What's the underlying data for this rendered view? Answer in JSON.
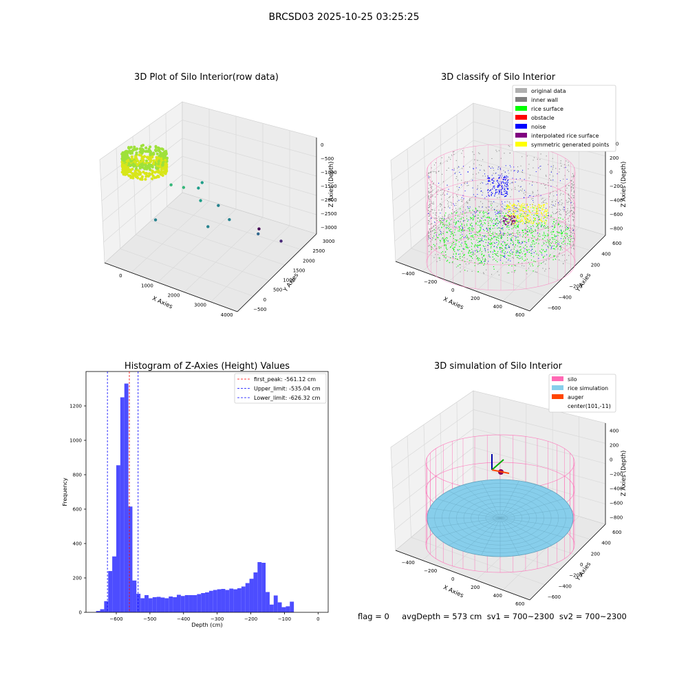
{
  "figure": {
    "title": "BRCSD03 2025-10-25 03:25:25",
    "status_text": "flag = 0     avgDepth = 573 cm  sv1 = 700~2300  sv2 = 700~2300"
  },
  "colors": {
    "original": "#b0b0b0",
    "inner_wall": "#808080",
    "rice_surface": "#00ff00",
    "obstacle": "#ff0000",
    "noise": "#0000ff",
    "interpolated": "#800080",
    "symmetric": "#ffff00",
    "silo": "#ff69b4",
    "rice_sim": "#87ceeb",
    "auger": "#ff4500",
    "hist_bar": "#4d4dff",
    "pane": "#f2f2f2",
    "grid": "#d9d9d9"
  },
  "chart_data": [
    {
      "type": "scatter",
      "subtype": "3d",
      "title": "3D Plot of Silo Interior(row data)",
      "xlabel": "X Axies",
      "ylabel": "Y Axies",
      "zlabel": "Z Axies (Depth)",
      "xticks": [
        "0",
        "1000",
        "2000",
        "3000",
        "4000"
      ],
      "yticks": [
        "−500",
        "0",
        "500",
        "1000",
        "1500",
        "2000",
        "2500",
        "3000"
      ],
      "zticks": [
        "0",
        "−500",
        "−1000",
        "−1500",
        "−2000",
        "−2500",
        "−3000"
      ],
      "xlim": [
        -500,
        4000
      ],
      "ylim": [
        -500,
        3000
      ],
      "zlim": [
        -3200,
        0
      ],
      "colormap": "viridis",
      "points": [
        {
          "x": 1000,
          "y": 500,
          "z": -900
        },
        {
          "x": 1200,
          "y": 800,
          "z": -1100
        },
        {
          "x": 1400,
          "y": 1200,
          "z": -1300
        },
        {
          "x": 1700,
          "y": 900,
          "z": -1400
        },
        {
          "x": 1300,
          "y": 1500,
          "z": -1350
        },
        {
          "x": 2000,
          "y": 1300,
          "z": -1700
        },
        {
          "x": 2600,
          "y": 1000,
          "z": -1750
        },
        {
          "x": 2100,
          "y": 700,
          "z": -1950
        },
        {
          "x": 3200,
          "y": 1500,
          "z": -2300
        },
        {
          "x": 700,
          "y": 200,
          "z": -1900
        },
        {
          "x": 3600,
          "y": 2000,
          "z": -2700
        },
        {
          "x": 2400,
          "y": 2600,
          "z": -3100
        }
      ]
    },
    {
      "type": "scatter",
      "subtype": "3d",
      "title": "3D classify of Silo Interior",
      "xlabel": "X Axies",
      "ylabel": "Y Axies",
      "zlabel": "Z Axies (Depth)",
      "xticks": [
        "−400",
        "−200",
        "0",
        "200",
        "400",
        "600"
      ],
      "yticks": [
        "−600",
        "−400",
        "−200",
        "0",
        "200",
        "400",
        "600"
      ],
      "zticks": [
        "400",
        "200",
        "0",
        "−200",
        "−400",
        "−600",
        "−800"
      ],
      "xlim": [
        -500,
        700
      ],
      "ylim": [
        -600,
        600
      ],
      "zlim": [
        -900,
        400
      ],
      "legend": [
        "original data",
        "inner wall",
        "rice surface",
        "obstacle",
        "noise",
        "interpolated rice surface",
        "symmetric generated points"
      ],
      "legend_position": "upper right"
    },
    {
      "type": "bar",
      "title": "Histogram of Z-Axies (Height) Values",
      "xlabel": "Depth (cm)",
      "ylabel": "Frequency",
      "xlim": [
        -690,
        30
      ],
      "ylim": [
        0,
        1400
      ],
      "xticks": [
        -600,
        -500,
        -400,
        -300,
        -200,
        -100,
        0
      ],
      "yticks": [
        0,
        200,
        400,
        600,
        800,
        1000,
        1200
      ],
      "bin_width": 12,
      "bin_start": -660,
      "values": [
        8,
        18,
        65,
        240,
        325,
        855,
        1250,
        1330,
        615,
        185,
        108,
        82,
        100,
        82,
        88,
        90,
        86,
        82,
        92,
        88,
        102,
        95,
        100,
        100,
        100,
        106,
        112,
        116,
        125,
        130,
        134,
        136,
        130,
        138,
        134,
        140,
        150,
        170,
        195,
        232,
        292,
        288,
        118,
        45,
        98,
        58,
        30,
        35,
        62
      ],
      "lines": [
        {
          "label": "first_peak: -561.12 cm",
          "x": -561.12,
          "color": "#ff0000"
        },
        {
          "label": "Upper_limit: -535.04 cm",
          "x": -535.04,
          "color": "#0000ff"
        },
        {
          "label": "Lower_limit: -626.32 cm",
          "x": -626.32,
          "color": "#0000ff"
        }
      ],
      "legend_position": "upper right"
    },
    {
      "type": "scatter",
      "subtype": "3d",
      "title": "3D simulation of Silo Interior",
      "xlabel": "X Axies",
      "ylabel": "Y Axies",
      "zlabel": "Z Axies (Depth)",
      "xticks": [
        "−400",
        "−200",
        "0",
        "200",
        "400",
        "600"
      ],
      "yticks": [
        "−600",
        "−400",
        "−200",
        "0",
        "200",
        "400",
        "600"
      ],
      "zticks": [
        "400",
        "200",
        "0",
        "−200",
        "−400",
        "−600",
        "−800"
      ],
      "xlim": [
        -500,
        700
      ],
      "ylim": [
        -600,
        600
      ],
      "zlim": [
        -900,
        450
      ],
      "legend": [
        "silo",
        "rice simulation",
        "auger",
        "center(101,-11)"
      ],
      "legend_position": "upper right"
    }
  ]
}
